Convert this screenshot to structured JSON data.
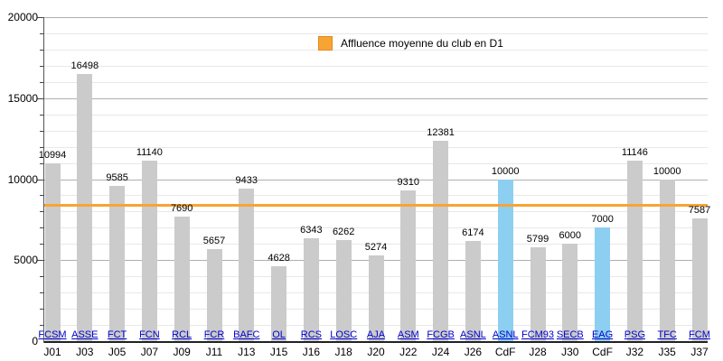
{
  "chart_data": {
    "type": "bar",
    "title": "",
    "legend": [
      {
        "label": "Affluence moyenne du club en D1",
        "color": "#F8A434",
        "shape": "square",
        "position": "top-center"
      }
    ],
    "xlabel": "",
    "ylabel": "",
    "ylim": [
      0,
      20000
    ],
    "y_major_ticks": [
      0,
      5000,
      10000,
      15000,
      20000
    ],
    "y_minor_step": 1000,
    "grid": true,
    "average_line": {
      "value": 8400,
      "color": "#F8A434"
    },
    "colors": {
      "bar_default": "#CBCBCB",
      "bar_highlight": "#8CCFF1",
      "club_link": "#0000CC",
      "grid_major": "#B0B0B0",
      "grid_minor": "#E8E8E8",
      "axis": "#222222"
    },
    "points": [
      {
        "club": "FCSM",
        "day": "J01",
        "value": 10994,
        "highlight": false
      },
      {
        "club": "ASSE",
        "day": "J03",
        "value": 16498,
        "highlight": false
      },
      {
        "club": "FCT",
        "day": "J05",
        "value": 9585,
        "highlight": false
      },
      {
        "club": "FCN",
        "day": "J07",
        "value": 11140,
        "highlight": false
      },
      {
        "club": "RCL",
        "day": "J09",
        "value": 7690,
        "highlight": false
      },
      {
        "club": "FCR",
        "day": "J11",
        "value": 5657,
        "highlight": false
      },
      {
        "club": "BAFC",
        "day": "J13",
        "value": 9433,
        "highlight": false
      },
      {
        "club": "OL",
        "day": "J15",
        "value": 4628,
        "highlight": false
      },
      {
        "club": "RCS",
        "day": "J16",
        "value": 6343,
        "highlight": false
      },
      {
        "club": "LOSC",
        "day": "J18",
        "value": 6262,
        "highlight": false
      },
      {
        "club": "AJA",
        "day": "J20",
        "value": 5274,
        "highlight": false
      },
      {
        "club": "ASM",
        "day": "J22",
        "value": 9310,
        "highlight": false
      },
      {
        "club": "FCGB",
        "day": "J24",
        "value": 12381,
        "highlight": false
      },
      {
        "club": "ASNL",
        "day": "J26",
        "value": 6174,
        "highlight": false
      },
      {
        "club": "ASNL",
        "day": "CdF",
        "value": 10000,
        "highlight": true
      },
      {
        "club": "FCM93",
        "day": "J28",
        "value": 5799,
        "highlight": false
      },
      {
        "club": "SECB",
        "day": "J30",
        "value": 6000,
        "highlight": false
      },
      {
        "club": "EAG",
        "day": "CdF",
        "value": 7000,
        "highlight": true
      },
      {
        "club": "PSG",
        "day": "J32",
        "value": 11146,
        "highlight": false
      },
      {
        "club": "TFC",
        "day": "J35",
        "value": 10000,
        "highlight": false
      },
      {
        "club": "FCM",
        "day": "J37",
        "value": 7587,
        "highlight": false
      }
    ]
  }
}
